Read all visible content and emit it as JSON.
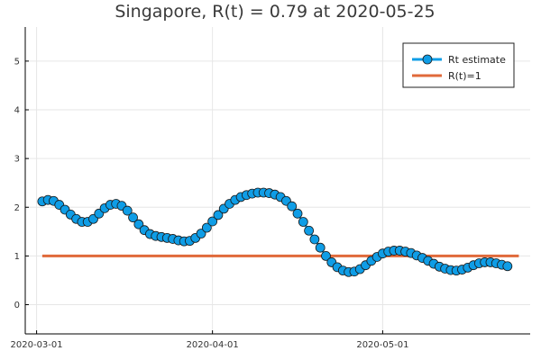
{
  "chart_data": {
    "type": "line",
    "title": "Singapore, R(t) = 0.79 at 2020-05-25",
    "xlabel": "",
    "ylabel": "",
    "x_start_date": "2020-03-02",
    "x_ticks": [
      {
        "label": "2020-03-01",
        "date": "2020-03-01"
      },
      {
        "label": "2020-04-01",
        "date": "2020-04-01"
      },
      {
        "label": "2020-05-01",
        "date": "2020-05-01"
      }
    ],
    "y_ticks": [
      0,
      1,
      2,
      3,
      4,
      5
    ],
    "xlim": [
      "2020-02-28",
      "2020-05-27"
    ],
    "ylim": [
      -0.6,
      5.7
    ],
    "grid": true,
    "legend_position": "top-right",
    "series": [
      {
        "name": "Rt estimate",
        "style": "line-with-markers",
        "color": "#0f9de6",
        "line_color": "#0f9de6",
        "marker_edge": "#1a1a1a",
        "values": [
          2.12,
          2.15,
          2.13,
          2.05,
          1.95,
          1.85,
          1.76,
          1.7,
          1.7,
          1.76,
          1.87,
          1.98,
          2.05,
          2.07,
          2.03,
          1.93,
          1.79,
          1.65,
          1.53,
          1.45,
          1.41,
          1.39,
          1.37,
          1.35,
          1.32,
          1.3,
          1.31,
          1.37,
          1.46,
          1.58,
          1.71,
          1.84,
          1.97,
          2.07,
          2.15,
          2.21,
          2.25,
          2.28,
          2.3,
          2.3,
          2.29,
          2.26,
          2.21,
          2.13,
          2.02,
          1.87,
          1.7,
          1.52,
          1.34,
          1.17,
          1.0,
          0.87,
          0.77,
          0.7,
          0.67,
          0.68,
          0.73,
          0.81,
          0.9,
          0.98,
          1.05,
          1.09,
          1.11,
          1.11,
          1.09,
          1.06,
          1.01,
          0.96,
          0.9,
          0.84,
          0.78,
          0.74,
          0.71,
          0.7,
          0.72,
          0.76,
          0.81,
          0.85,
          0.87,
          0.87,
          0.85,
          0.82,
          0.79
        ]
      },
      {
        "name": "R(t)=1",
        "style": "line",
        "color": "#e0693a",
        "values": [
          1,
          1
        ],
        "x": [
          "2020-03-02",
          "2020-05-25"
        ]
      }
    ]
  }
}
